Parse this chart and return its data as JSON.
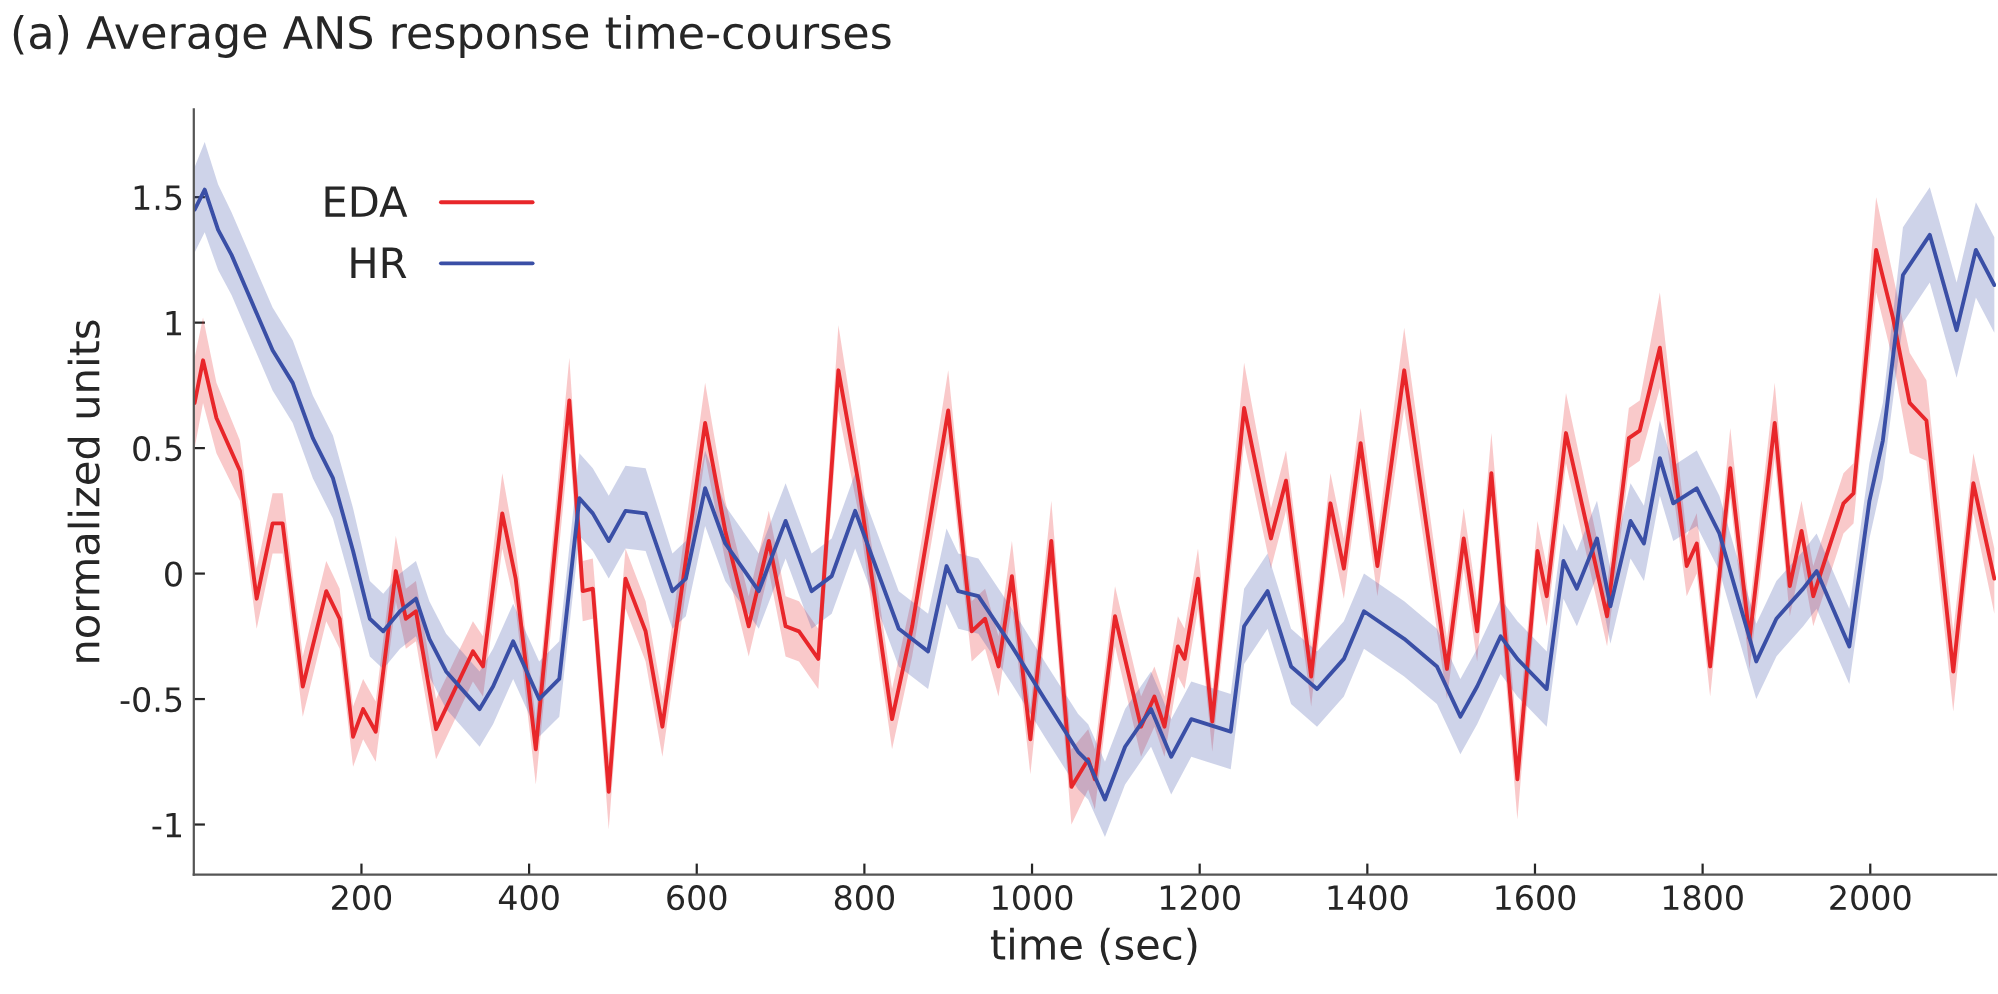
{
  "chart_data": {
    "type": "line",
    "title": "(a) Average ANS response time-courses",
    "xlabel": "time (sec)",
    "ylabel": "normalized units",
    "xlim": [
      0,
      2150
    ],
    "xticks": [
      200,
      400,
      600,
      800,
      1000,
      1200,
      1400,
      1600,
      1800,
      2000
    ],
    "ylim": [
      -1.2,
      1.85
    ],
    "yticks": [
      {
        "value": -1,
        "label": "-1"
      },
      {
        "value": -0.5,
        "label": "-0.5"
      },
      0,
      0.5,
      1,
      1.5
    ],
    "grid": false,
    "legend": "top left",
    "marker": "none",
    "line_style": "solid",
    "series": [
      {
        "name": "EDA",
        "color": "#e8262a",
        "x": [
          1,
          11,
          27,
          55,
          75,
          94,
          106,
          130,
          158,
          174,
          190,
          202,
          217,
          241,
          253,
          265,
          289,
          333,
          345,
          368,
          384,
          408,
          448,
          464,
          476,
          495,
          515,
          539,
          559,
          610,
          634,
          662,
          686,
          706,
          722,
          745,
          769,
          793,
          833,
          857,
          869,
          900,
          928,
          944,
          960,
          976,
          998,
          1023,
          1047,
          1067,
          1075,
          1099,
          1130,
          1146,
          1158,
          1174,
          1182,
          1198,
          1215,
          1253,
          1285,
          1303,
          1333,
          1356,
          1372,
          1392,
          1412,
          1444,
          1495,
          1515,
          1531,
          1548,
          1579,
          1603,
          1614,
          1637,
          1686,
          1712,
          1725,
          1749,
          1781,
          1793,
          1809,
          1833,
          1856,
          1886,
          1904,
          1918,
          1932,
          1968,
          1980,
          2007,
          2027,
          2047,
          2067,
          2099,
          2123,
          2148
        ],
        "values": [
          0.68,
          0.85,
          0.62,
          0.41,
          -0.1,
          0.2,
          0.2,
          -0.45,
          -0.07,
          -0.18,
          -0.65,
          -0.54,
          -0.63,
          0.01,
          -0.18,
          -0.15,
          -0.62,
          -0.31,
          -0.37,
          0.24,
          -0.02,
          -0.7,
          0.69,
          -0.07,
          -0.06,
          -0.87,
          -0.02,
          -0.23,
          -0.61,
          0.6,
          0.17,
          -0.21,
          0.13,
          -0.21,
          -0.23,
          -0.34,
          0.81,
          0.36,
          -0.58,
          -0.21,
          0.03,
          0.65,
          -0.23,
          -0.18,
          -0.37,
          -0.01,
          -0.66,
          0.13,
          -0.85,
          -0.74,
          -0.82,
          -0.17,
          -0.61,
          -0.49,
          -0.61,
          -0.29,
          -0.34,
          -0.02,
          -0.59,
          0.66,
          0.14,
          0.37,
          -0.41,
          0.28,
          0.02,
          0.52,
          0.03,
          0.81,
          -0.38,
          0.14,
          -0.23,
          0.4,
          -0.82,
          0.09,
          -0.09,
          0.56,
          -0.17,
          0.54,
          0.57,
          0.9,
          0.03,
          0.12,
          -0.37,
          0.42,
          -0.26,
          0.6,
          -0.05,
          0.17,
          -0.09,
          0.28,
          0.32,
          1.29,
          1.02,
          0.68,
          0.61,
          -0.39,
          0.36,
          -0.02
        ],
        "lower": [
          0.5,
          0.68,
          0.48,
          0.29,
          -0.22,
          0.08,
          0.08,
          -0.57,
          -0.19,
          -0.3,
          -0.77,
          -0.66,
          -0.75,
          -0.11,
          -0.3,
          -0.27,
          -0.74,
          -0.43,
          -0.49,
          0.1,
          -0.14,
          -0.84,
          0.52,
          -0.19,
          -0.18,
          -1.02,
          -0.14,
          -0.35,
          -0.73,
          0.47,
          0.05,
          -0.33,
          0.01,
          -0.33,
          -0.35,
          -0.46,
          0.65,
          0.24,
          -0.7,
          -0.33,
          -0.09,
          0.52,
          -0.35,
          -0.3,
          -0.49,
          -0.13,
          -0.8,
          0.0,
          -1.0,
          -0.86,
          -0.94,
          -0.29,
          -0.73,
          -0.61,
          -0.73,
          -0.41,
          -0.46,
          -0.14,
          -0.71,
          0.52,
          0.02,
          0.25,
          -0.53,
          0.16,
          -0.1,
          0.4,
          -0.09,
          0.66,
          -0.5,
          0.02,
          -0.35,
          0.28,
          -0.98,
          -0.03,
          -0.21,
          0.44,
          -0.29,
          0.42,
          0.45,
          0.74,
          -0.09,
          0.0,
          -0.49,
          0.3,
          -0.38,
          0.46,
          -0.17,
          0.05,
          -0.21,
          0.16,
          0.2,
          1.12,
          0.85,
          0.48,
          0.45,
          -0.55,
          0.24,
          -0.16
        ],
        "upper": [
          0.86,
          1.02,
          0.76,
          0.53,
          0.02,
          0.32,
          0.32,
          -0.33,
          0.05,
          -0.06,
          -0.53,
          -0.42,
          -0.51,
          0.15,
          -0.06,
          -0.03,
          -0.5,
          -0.19,
          -0.25,
          0.4,
          0.1,
          -0.58,
          0.86,
          0.05,
          0.06,
          -0.72,
          0.1,
          -0.11,
          -0.49,
          0.76,
          0.29,
          -0.09,
          0.25,
          -0.09,
          -0.11,
          -0.22,
          0.99,
          0.48,
          -0.46,
          -0.09,
          0.15,
          0.81,
          -0.11,
          -0.06,
          -0.25,
          0.13,
          -0.54,
          0.29,
          -0.7,
          -0.62,
          -0.7,
          -0.05,
          -0.49,
          -0.37,
          -0.49,
          -0.17,
          -0.22,
          0.1,
          -0.47,
          0.84,
          0.26,
          0.49,
          -0.29,
          0.4,
          0.14,
          0.66,
          0.15,
          0.98,
          -0.26,
          0.26,
          -0.11,
          0.56,
          -0.66,
          0.21,
          0.03,
          0.72,
          -0.05,
          0.66,
          0.69,
          1.12,
          0.15,
          0.24,
          -0.25,
          0.58,
          -0.14,
          0.76,
          0.07,
          0.29,
          0.03,
          0.4,
          0.44,
          1.5,
          1.19,
          0.88,
          0.77,
          -0.23,
          0.48,
          0.1
        ]
      },
      {
        "name": "HR",
        "color": "#3a4fa6",
        "x": [
          1,
          13,
          29,
          45,
          63,
          94,
          118,
          142,
          166,
          190,
          210,
          226,
          246,
          265,
          281,
          301,
          341,
          357,
          381,
          412,
          436,
          460,
          476,
          495,
          515,
          539,
          571,
          587,
          610,
          634,
          674,
          706,
          737,
          761,
          789,
          841,
          876,
          898,
          912,
          936,
          976,
          1015,
          1055,
          1067,
          1087,
          1111,
          1142,
          1166,
          1190,
          1237,
          1253,
          1281,
          1309,
          1340,
          1372,
          1396,
          1444,
          1483,
          1511,
          1531,
          1559,
          1579,
          1614,
          1634,
          1650,
          1674,
          1690,
          1714,
          1730,
          1749,
          1765,
          1793,
          1820,
          1864,
          1888,
          1920,
          1936,
          1975,
          1999,
          2015,
          2039,
          2071,
          2103,
          2126,
          2148
        ],
        "values": [
          1.45,
          1.53,
          1.37,
          1.27,
          1.13,
          0.89,
          0.76,
          0.54,
          0.38,
          0.09,
          -0.18,
          -0.23,
          -0.15,
          -0.1,
          -0.26,
          -0.39,
          -0.54,
          -0.45,
          -0.27,
          -0.5,
          -0.42,
          0.3,
          0.24,
          0.13,
          0.25,
          0.24,
          -0.07,
          -0.02,
          0.34,
          0.12,
          -0.07,
          0.21,
          -0.07,
          -0.01,
          0.25,
          -0.22,
          -0.31,
          0.03,
          -0.07,
          -0.09,
          -0.29,
          -0.5,
          -0.71,
          -0.75,
          -0.9,
          -0.69,
          -0.54,
          -0.73,
          -0.58,
          -0.63,
          -0.21,
          -0.07,
          -0.37,
          -0.46,
          -0.34,
          -0.15,
          -0.26,
          -0.37,
          -0.57,
          -0.45,
          -0.25,
          -0.34,
          -0.46,
          0.05,
          -0.06,
          0.14,
          -0.13,
          0.21,
          0.12,
          0.46,
          0.28,
          0.34,
          0.16,
          -0.35,
          -0.18,
          -0.06,
          0.01,
          -0.29,
          0.29,
          0.53,
          1.19,
          1.35,
          0.97,
          1.29,
          1.15
        ],
        "lower": [
          1.28,
          1.36,
          1.21,
          1.11,
          0.97,
          0.73,
          0.6,
          0.38,
          0.22,
          -0.07,
          -0.33,
          -0.38,
          -0.3,
          -0.25,
          -0.41,
          -0.54,
          -0.69,
          -0.6,
          -0.42,
          -0.65,
          -0.57,
          0.15,
          0.09,
          -0.02,
          0.1,
          0.09,
          -0.22,
          -0.17,
          0.19,
          -0.03,
          -0.22,
          0.06,
          -0.22,
          -0.16,
          0.1,
          -0.37,
          -0.46,
          -0.12,
          -0.22,
          -0.24,
          -0.44,
          -0.65,
          -0.86,
          -0.9,
          -1.05,
          -0.84,
          -0.69,
          -0.88,
          -0.73,
          -0.78,
          -0.36,
          -0.22,
          -0.52,
          -0.61,
          -0.49,
          -0.3,
          -0.41,
          -0.52,
          -0.72,
          -0.6,
          -0.4,
          -0.49,
          -0.61,
          -0.1,
          -0.21,
          -0.01,
          -0.28,
          0.06,
          -0.03,
          0.31,
          0.13,
          0.19,
          0.01,
          -0.5,
          -0.33,
          -0.21,
          -0.14,
          -0.44,
          0.14,
          0.38,
          1.0,
          1.16,
          0.78,
          1.1,
          0.96
        ],
        "upper": [
          1.62,
          1.72,
          1.55,
          1.44,
          1.3,
          1.06,
          0.93,
          0.71,
          0.55,
          0.26,
          -0.03,
          -0.08,
          0.0,
          0.05,
          -0.11,
          -0.24,
          -0.39,
          -0.3,
          -0.12,
          -0.35,
          -0.27,
          0.48,
          0.42,
          0.31,
          0.43,
          0.42,
          0.08,
          0.13,
          0.49,
          0.27,
          0.08,
          0.36,
          0.08,
          0.14,
          0.4,
          -0.07,
          -0.16,
          0.18,
          0.08,
          0.06,
          -0.14,
          -0.35,
          -0.56,
          -0.6,
          -0.75,
          -0.54,
          -0.39,
          -0.58,
          -0.43,
          -0.48,
          -0.06,
          0.08,
          -0.22,
          -0.31,
          -0.19,
          0.0,
          -0.11,
          -0.22,
          -0.42,
          -0.3,
          -0.1,
          -0.19,
          -0.31,
          0.2,
          0.09,
          0.29,
          0.02,
          0.36,
          0.27,
          0.61,
          0.43,
          0.49,
          0.31,
          -0.2,
          -0.03,
          0.09,
          0.16,
          -0.14,
          0.44,
          0.68,
          1.38,
          1.54,
          1.16,
          1.48,
          1.34
        ]
      }
    ]
  }
}
